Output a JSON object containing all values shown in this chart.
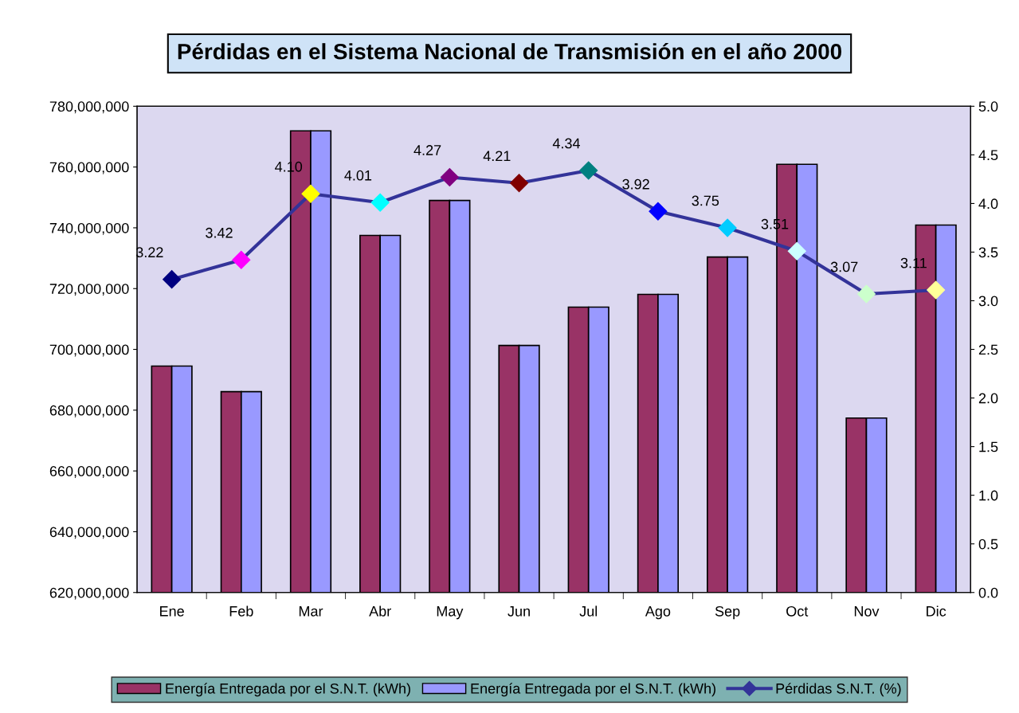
{
  "chart_data": {
    "type": "bar",
    "title": "Pérdidas en el Sistema Nacional de Transmisión en el año 2000",
    "categories": [
      "Ene",
      "Feb",
      "Mar",
      "Abr",
      "May",
      "Jun",
      "Jul",
      "Ago",
      "Sep",
      "Oct",
      "Nov",
      "Dic"
    ],
    "series": [
      {
        "name": "Energía Entregada por el S.N.T. (kWh)",
        "color": "#993366",
        "values": [
          694500000,
          686100000,
          771900000,
          737500000,
          749000000,
          701300000,
          713900000,
          718100000,
          730400000,
          760900000,
          677400000,
          740900000
        ]
      },
      {
        "name": "Energía Entregada por el S.N.T. (kWh)",
        "color": "#9999ff",
        "values": [
          694500000,
          686100000,
          771900000,
          737500000,
          749000000,
          701300000,
          713900000,
          718100000,
          730400000,
          760900000,
          677400000,
          740900000
        ]
      },
      {
        "name": "Pérdidas S.N.T. (%)",
        "type": "line",
        "axis": "y2",
        "color": "#333399",
        "marker": "diamond",
        "colors": [
          "#000080",
          "#ff00ff",
          "#ffff00",
          "#00ffff",
          "#800080",
          "#800000",
          "#008080",
          "#0000ff",
          "#00ccff",
          "#ccffff",
          "#ccffcc",
          "#ffff99"
        ],
        "values": [
          3.22,
          3.42,
          4.1,
          4.01,
          4.27,
          4.21,
          4.34,
          3.92,
          3.75,
          3.51,
          3.07,
          3.11
        ],
        "value_labels": [
          "3.22",
          "3.42",
          "4.10",
          "4.01",
          "4.27",
          "4.21",
          "4.34",
          "3.92",
          "3.75",
          "3.51",
          "3.07",
          "3.11"
        ]
      }
    ],
    "ylim": [
      620000000,
      780000000
    ],
    "yticks": [
      {
        "value": 620000000,
        "label": "620,000,000"
      },
      {
        "value": 640000000,
        "label": "640,000,000"
      },
      {
        "value": 660000000,
        "label": "660,000,000"
      },
      {
        "value": 680000000,
        "label": "680,000,000"
      },
      {
        "value": 700000000,
        "label": "700,000,000"
      },
      {
        "value": 720000000,
        "label": "720,000,000"
      },
      {
        "value": 740000000,
        "label": "740,000,000"
      },
      {
        "value": 760000000,
        "label": "760,000,000"
      },
      {
        "value": 780000000,
        "label": "780,000,000"
      }
    ],
    "y2lim": [
      0,
      5
    ],
    "y2ticks": [
      {
        "value": 0,
        "label": "0.0"
      },
      {
        "value": 0.5,
        "label": "0.5"
      },
      {
        "value": 1,
        "label": "1.0"
      },
      {
        "value": 1.5,
        "label": "1.5"
      },
      {
        "value": 2,
        "label": "2.0"
      },
      {
        "value": 2.5,
        "label": "2.5"
      },
      {
        "value": 3,
        "label": "3.0"
      },
      {
        "value": 3.5,
        "label": "3.5"
      },
      {
        "value": 4,
        "label": "4.0"
      },
      {
        "value": 4.5,
        "label": "4.5"
      },
      {
        "value": 5,
        "label": "5.0"
      }
    ],
    "grid": false,
    "legend": "bottom"
  }
}
